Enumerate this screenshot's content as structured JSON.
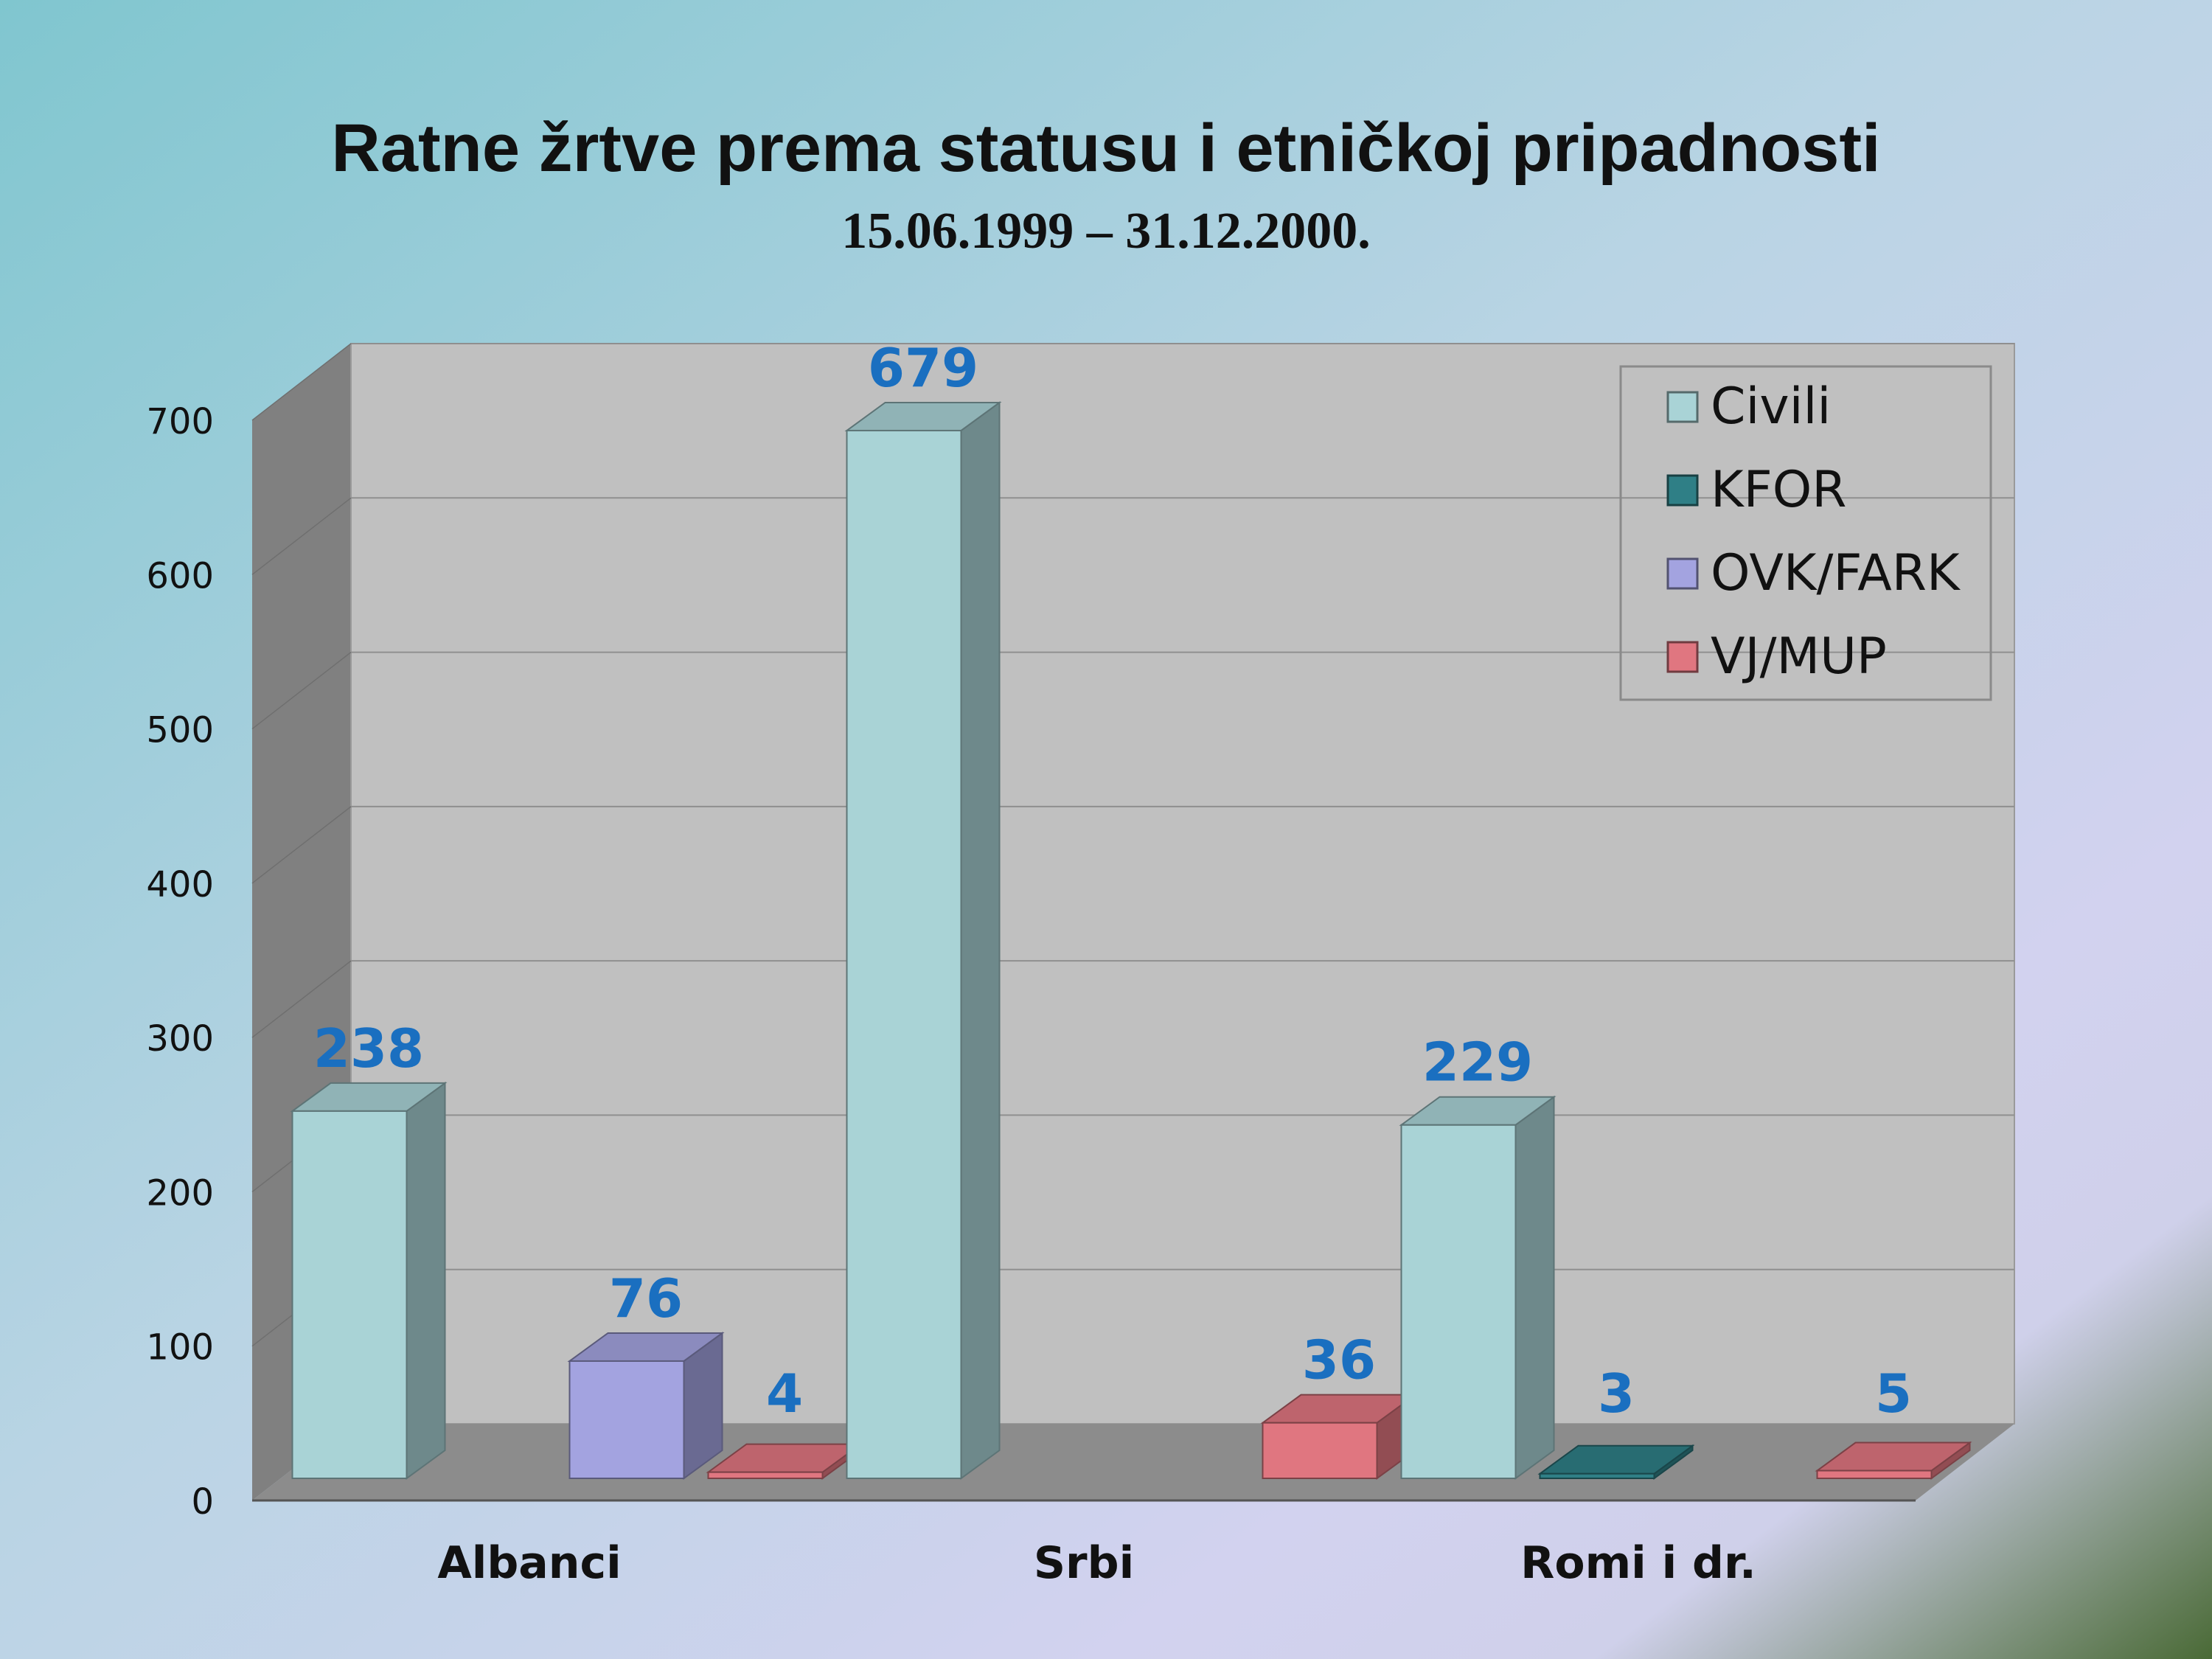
{
  "slide": {
    "title": "Ratne žrtve prema statusu i etničkoj pripadnosti",
    "subtitle": "15.06.1999 – 31.12.2000.",
    "background_colors": [
      "#85c7cf",
      "#c2cce6",
      "#d4d2f0",
      "#4f6b3a"
    ]
  },
  "chart_data": {
    "type": "bar",
    "title": "Ratne žrtve prema statusu i etničkoj pripadnosti",
    "subtitle": "15.06.1999 – 31.12.2000.",
    "categories": [
      "Albanci",
      "Srbi",
      "Romi i dr."
    ],
    "series": [
      {
        "name": "Civili",
        "values": [
          238,
          679,
          229
        ],
        "color": "#a9d3d6"
      },
      {
        "name": "KFOR",
        "values": [
          0,
          0,
          3
        ],
        "color": "#2f7f86"
      },
      {
        "name": "OVK/FARK",
        "values": [
          76,
          0,
          0
        ],
        "color": "#a3a3e0"
      },
      {
        "name": "VJ/MUP",
        "values": [
          4,
          36,
          5
        ],
        "color": "#e07680"
      }
    ],
    "ylim": [
      0,
      700
    ],
    "yticks": [
      "0",
      "100",
      "200",
      "300",
      "400",
      "500",
      "600",
      "700"
    ],
    "grid": true,
    "legend": "top-right",
    "three_d": true,
    "data_label_color": "#1a6fc0"
  }
}
